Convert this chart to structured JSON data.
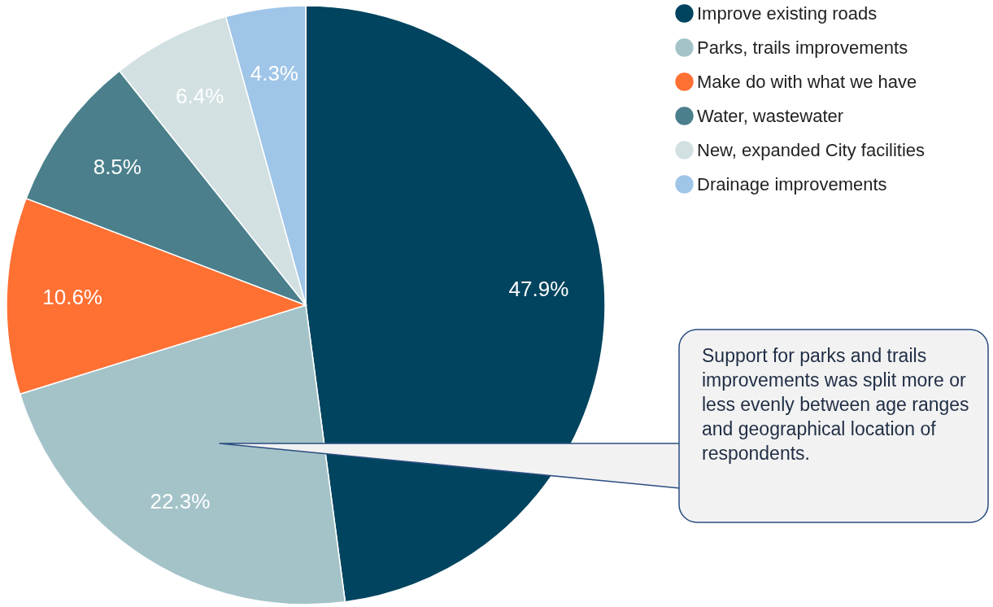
{
  "chart_data": {
    "type": "pie",
    "categories": [
      "Improve existing roads",
      "Parks, trails improvements",
      "Make do with what we have",
      "Water, wastewater",
      "New, expanded City facilities",
      "Drainage improvements"
    ],
    "values": [
      47.9,
      22.3,
      10.6,
      8.5,
      6.4,
      4.3
    ],
    "colors": [
      "#00445f",
      "#a3c3c8",
      "#ff7033",
      "#4a7f8b",
      "#d2e0e2",
      "#9fc5e8"
    ],
    "value_labels": [
      "47.9%",
      "22.3%",
      "10.6%",
      "8.5%",
      "6.4%",
      "4.3%"
    ],
    "legend": "top right",
    "annotations": [
      "Support for parks and trails improvements was split more or less evenly between age ranges and geographical location of respondents."
    ]
  }
}
